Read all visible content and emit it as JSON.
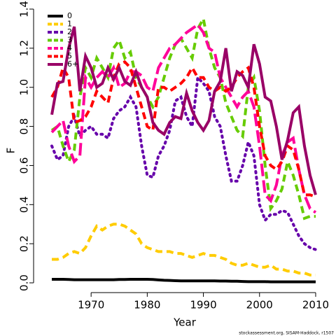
{
  "chart_data": {
    "type": "line",
    "x_label": "Year",
    "y_label": "F",
    "source": "stockassessment.org, SISAM-Haddock, r1507",
    "x": [
      1963,
      1964,
      1965,
      1966,
      1967,
      1968,
      1969,
      1970,
      1971,
      1972,
      1973,
      1974,
      1975,
      1976,
      1977,
      1978,
      1979,
      1980,
      1981,
      1982,
      1983,
      1984,
      1985,
      1986,
      1987,
      1988,
      1989,
      1990,
      1991,
      1992,
      1993,
      1994,
      1995,
      1996,
      1997,
      1998,
      1999,
      2000,
      2001,
      2002,
      2003,
      2004,
      2005,
      2006,
      2007,
      2008,
      2009,
      2010
    ],
    "xlim": [
      1961.5,
      2012
    ],
    "xticks": [
      1970,
      1980,
      1990,
      2000,
      2010
    ],
    "ylim": [
      -0.05,
      1.4
    ],
    "yticks": [
      {
        "value": 0,
        "label": "0.0"
      },
      0.2,
      0.4,
      0.6,
      0.8,
      {
        "value": 1,
        "label": "1.0"
      },
      1.2,
      1.4
    ],
    "legend": "top-left",
    "series": [
      {
        "name": "0",
        "color": "#000000",
        "dash": "solid",
        "values": [
          0.018,
          0.018,
          0.018,
          0.017,
          0.016,
          0.016,
          0.016,
          0.016,
          0.016,
          0.016,
          0.016,
          0.016,
          0.017,
          0.017,
          0.018,
          0.018,
          0.018,
          0.018,
          0.017,
          0.015,
          0.013,
          0.012,
          0.011,
          0.01,
          0.01,
          0.01,
          0.01,
          0.01,
          0.01,
          0.01,
          0.009,
          0.009,
          0.008,
          0.008,
          0.007,
          0.006,
          0.006,
          0.006,
          0.006,
          0.005,
          0.005,
          0.005,
          0.005,
          0.005,
          0.005,
          0.005,
          0.005,
          0.005
        ]
      },
      {
        "name": "1",
        "color": "#ffcc00",
        "dash": "dashed",
        "values": [
          0.12,
          0.12,
          0.13,
          0.15,
          0.16,
          0.15,
          0.18,
          0.24,
          0.29,
          0.27,
          0.29,
          0.3,
          0.3,
          0.29,
          0.27,
          0.25,
          0.2,
          0.18,
          0.17,
          0.16,
          0.16,
          0.16,
          0.15,
          0.15,
          0.14,
          0.13,
          0.14,
          0.15,
          0.14,
          0.14,
          0.13,
          0.12,
          0.1,
          0.09,
          0.09,
          0.1,
          0.09,
          0.08,
          0.08,
          0.09,
          0.07,
          0.07,
          0.06,
          0.06,
          0.05,
          0.05,
          0.04,
          0.04
        ]
      },
      {
        "name": "2",
        "color": "#6600aa",
        "dash": "dotted",
        "values": [
          0.7,
          0.63,
          0.65,
          0.8,
          0.85,
          0.75,
          0.78,
          0.8,
          0.76,
          0.76,
          0.74,
          0.84,
          0.88,
          0.9,
          0.95,
          0.9,
          0.7,
          0.55,
          0.54,
          0.65,
          0.7,
          0.78,
          0.93,
          0.95,
          0.85,
          0.8,
          1.05,
          1.02,
          0.98,
          0.85,
          0.8,
          0.65,
          0.52,
          0.52,
          0.6,
          0.72,
          0.65,
          0.4,
          0.32,
          0.35,
          0.35,
          0.37,
          0.36,
          0.3,
          0.24,
          0.2,
          0.18,
          0.17
        ]
      },
      {
        "name": "3",
        "color": "#66cc00",
        "dash": "dashed",
        "values": [
          0.78,
          0.8,
          0.7,
          0.62,
          0.68,
          0.95,
          1.1,
          1.05,
          1.15,
          1.1,
          1.05,
          1.2,
          1.24,
          1.15,
          1.18,
          1.05,
          1.0,
          0.95,
          0.9,
          0.95,
          1.05,
          1.15,
          1.22,
          1.25,
          1.2,
          1.15,
          1.3,
          1.35,
          1.2,
          1.1,
          1.05,
          0.92,
          0.85,
          0.78,
          0.75,
          1.0,
          1.05,
          0.88,
          0.6,
          0.38,
          0.42,
          0.48,
          0.62,
          0.55,
          0.45,
          0.33,
          0.34,
          0.34
        ]
      },
      {
        "name": "4",
        "color": "#ff0099",
        "dash": "longdash",
        "values": [
          0.77,
          0.8,
          0.83,
          0.7,
          0.62,
          0.65,
          1.05,
          1.0,
          1.05,
          1.08,
          1.05,
          1.1,
          1.0,
          1.02,
          1.08,
          1.08,
          1.06,
          1.0,
          0.98,
          1.1,
          1.15,
          1.2,
          1.22,
          1.25,
          1.28,
          1.3,
          1.32,
          1.28,
          1.2,
          1.18,
          1.05,
          1.0,
          0.95,
          0.9,
          0.95,
          0.98,
          0.9,
          0.7,
          0.45,
          0.42,
          0.5,
          0.65,
          0.72,
          0.74,
          0.58,
          0.45,
          0.38,
          0.36
        ]
      },
      {
        "name": "5",
        "color": "#ff0000",
        "dash": "dashed",
        "values": [
          0.95,
          1.0,
          1.1,
          1.05,
          0.82,
          0.83,
          0.85,
          0.9,
          0.98,
          0.95,
          0.92,
          1.05,
          1.12,
          1.13,
          1.1,
          1.0,
          0.9,
          0.8,
          0.78,
          1.0,
          1.0,
          0.98,
          1.0,
          1.02,
          1.05,
          1.1,
          1.05,
          1.05,
          1.0,
          0.98,
          1.0,
          0.98,
          1.0,
          1.05,
          1.08,
          1.1,
          1.0,
          0.8,
          0.65,
          0.6,
          0.58,
          0.62,
          0.7,
          0.68,
          0.58,
          0.45,
          0.45,
          0.44
        ]
      },
      {
        "name": "6+",
        "color": "#990066",
        "dash": "solid",
        "values": [
          0.86,
          1.02,
          1.03,
          1.2,
          1.31,
          0.98,
          1.16,
          1.1,
          1.0,
          1.02,
          1.1,
          1.04,
          1.1,
          1.03,
          1.01,
          1.08,
          1.0,
          0.95,
          0.82,
          0.78,
          0.76,
          0.82,
          0.85,
          0.84,
          0.97,
          0.88,
          0.82,
          0.78,
          0.83,
          0.98,
          1.03,
          1.2,
          0.98,
          1.08,
          1.06,
          1.0,
          1.22,
          1.12,
          0.95,
          0.93,
          0.8,
          0.63,
          0.73,
          0.87,
          0.9,
          0.7,
          0.55,
          0.45
        ]
      }
    ]
  }
}
